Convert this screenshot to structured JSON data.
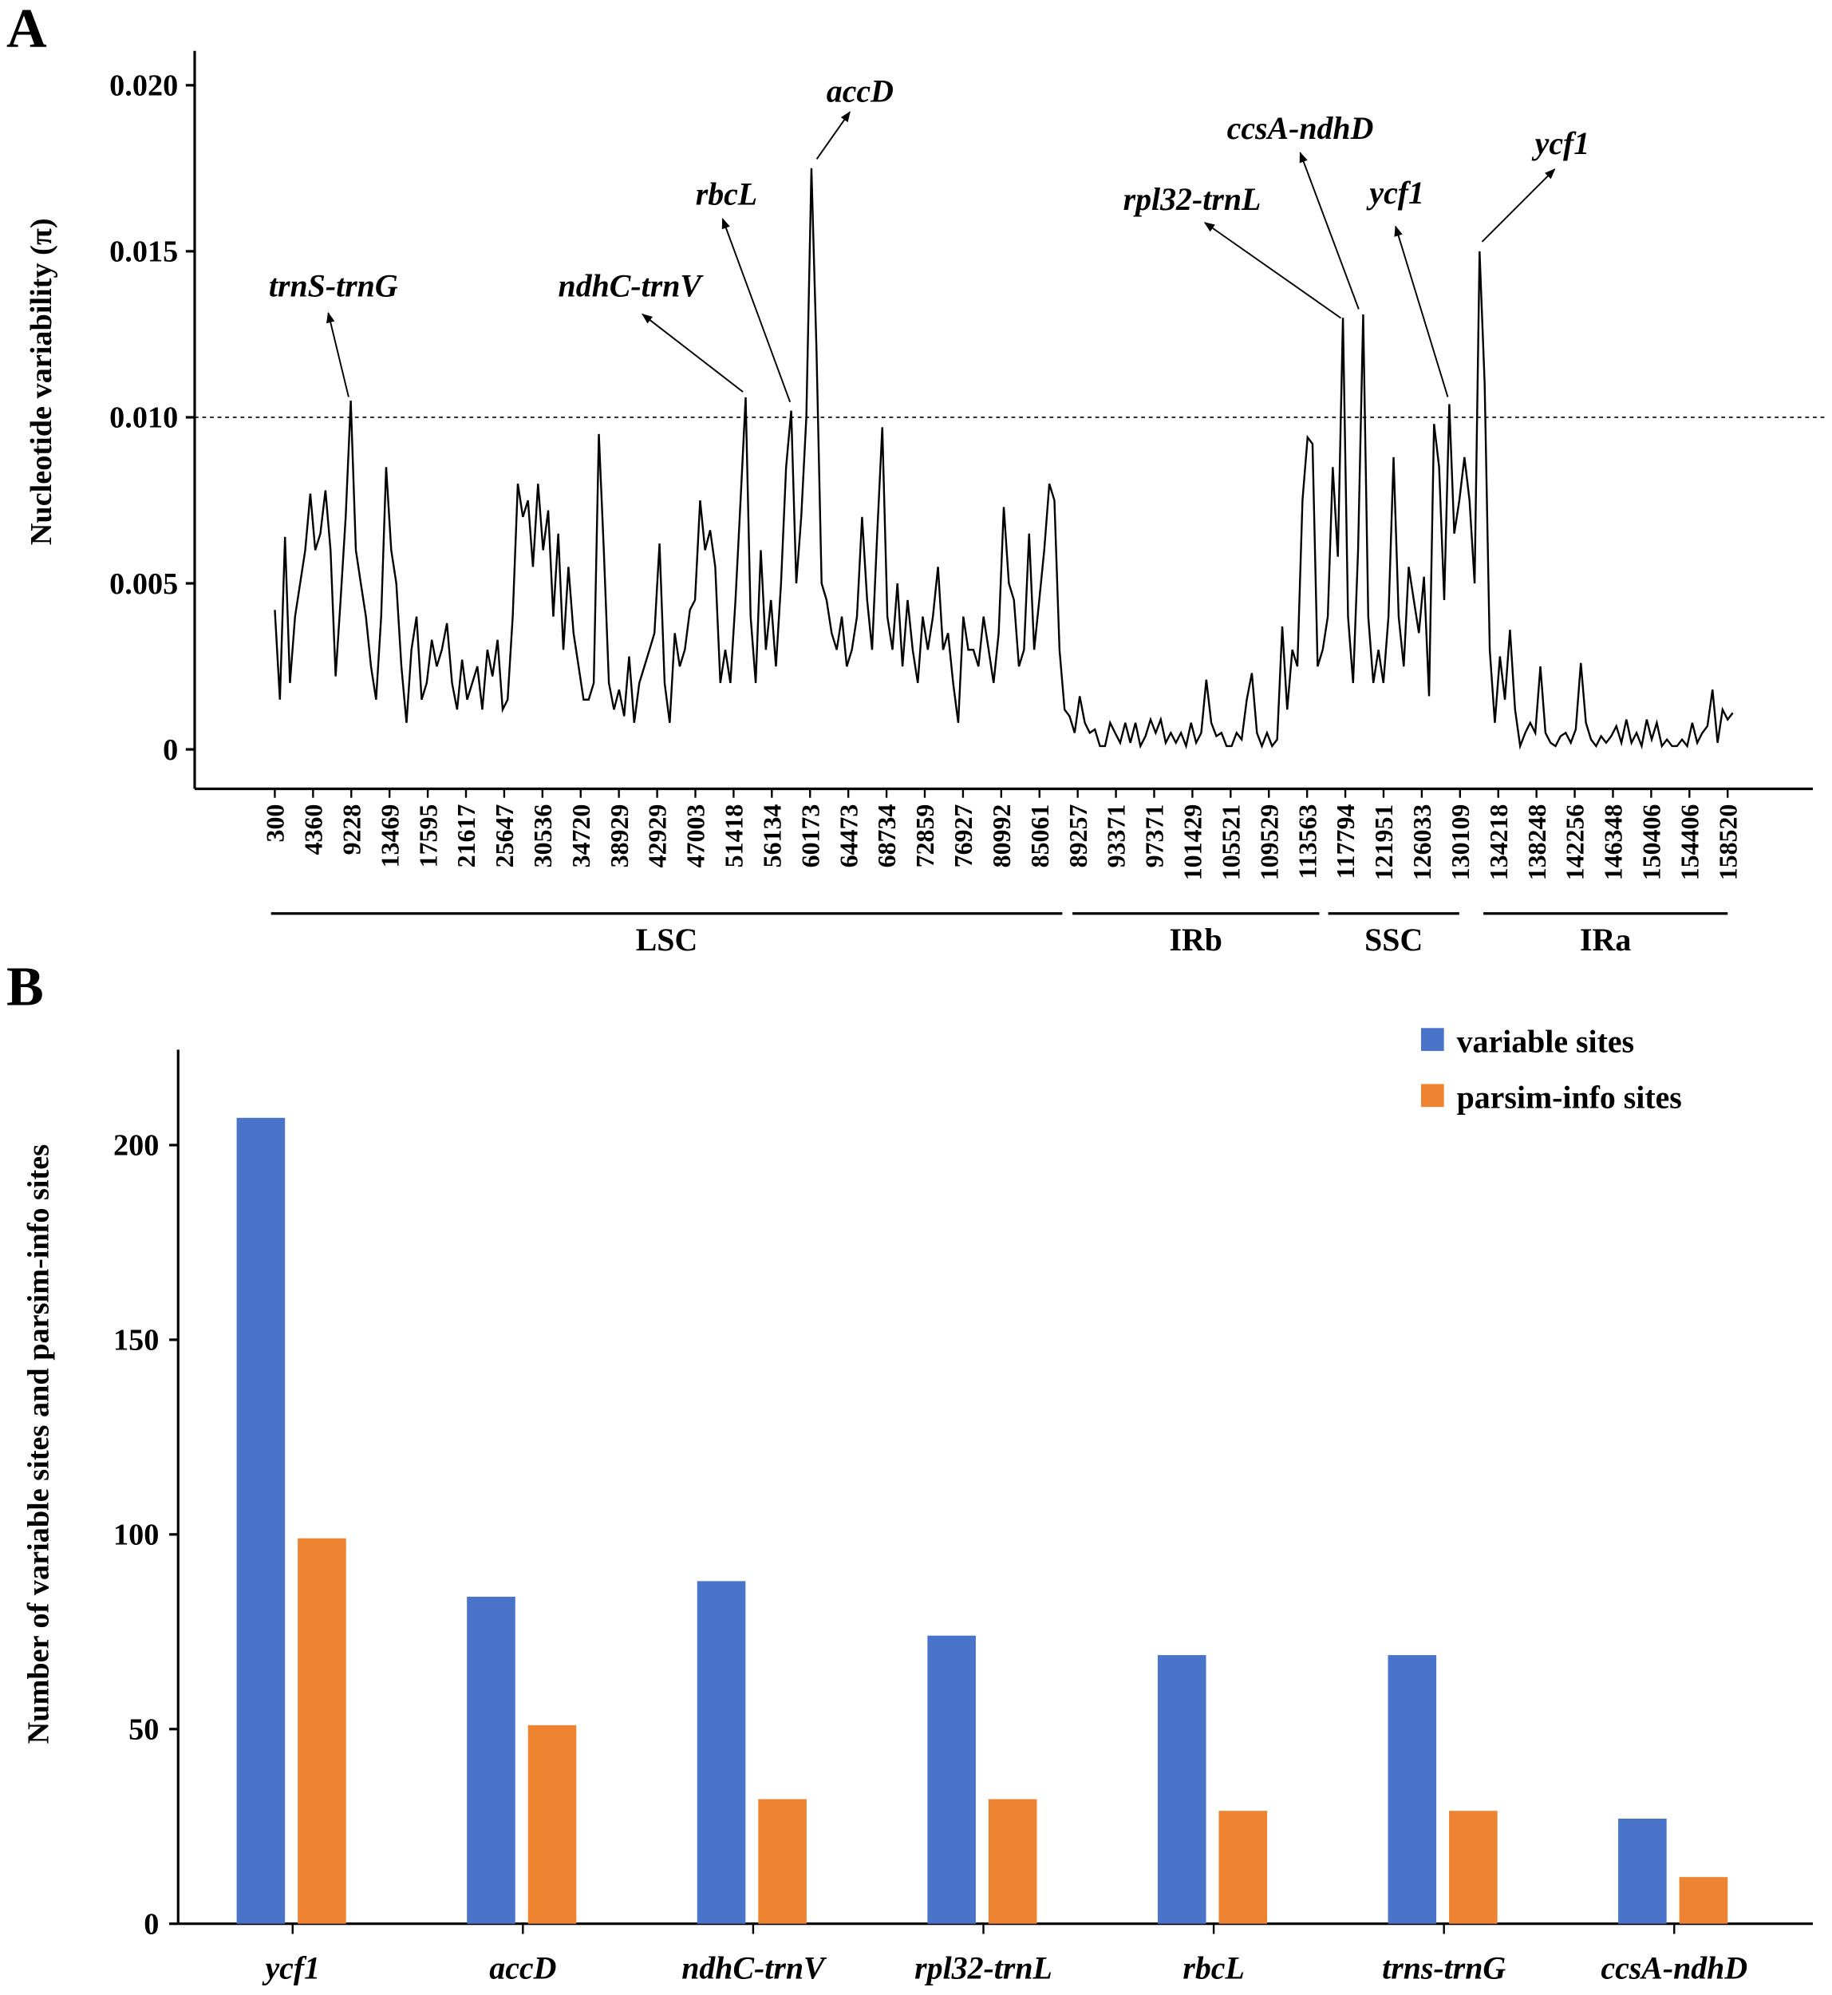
{
  "chart_data": [
    {
      "panel": "A",
      "type": "line",
      "title": "",
      "xlabel": "",
      "ylabel": "Nucleotide variability (π)",
      "ylim": [
        0,
        0.021
      ],
      "yticks": [
        "0",
        "0.005",
        "0.010",
        "0.015",
        "0.020"
      ],
      "ytick_values": [
        0,
        0.005,
        0.01,
        0.015,
        0.02
      ],
      "threshold": 0.01,
      "xticks": [
        "300",
        "4360",
        "9228",
        "13469",
        "17595",
        "21617",
        "25647",
        "30536",
        "34720",
        "38929",
        "42929",
        "47003",
        "51418",
        "56134",
        "60173",
        "64473",
        "68734",
        "72859",
        "76927",
        "80992",
        "85061",
        "89257",
        "93371",
        "97371",
        "101429",
        "105521",
        "109529",
        "113563",
        "117794",
        "121951",
        "126033",
        "130109",
        "134218",
        "138248",
        "142256",
        "146348",
        "150406",
        "154406",
        "158520"
      ],
      "x_range": [
        300,
        159400
      ],
      "regions": [
        {
          "label": "LSC",
          "start": 300,
          "end": 86000
        },
        {
          "label": "IRb",
          "start": 87000,
          "end": 114000
        },
        {
          "label": "SSC",
          "start": 115000,
          "end": 129000
        },
        {
          "label": "IRa",
          "start": 131500,
          "end": 158520
        }
      ],
      "annotations": [
        {
          "label": "trnS-trnG",
          "x": 8600,
          "y": 0.0105
        },
        {
          "label": "ndhC-trnV",
          "x": 51100,
          "y": 0.0106
        },
        {
          "label": "rbcL",
          "x": 56000,
          "y": 0.0102
        },
        {
          "label": "accD",
          "x": 58400,
          "y": 0.0175
        },
        {
          "label": "rpl32-trnL",
          "x": 116300,
          "y": 0.013
        },
        {
          "label": "ccsA-ndhD",
          "x": 118300,
          "y": 0.0131
        },
        {
          "label": "ycf1",
          "x": 127900,
          "y": 0.0104
        },
        {
          "label": "ycf1",
          "x": 131500,
          "y": 0.015
        }
      ],
      "values": [
        0.0042,
        0.0015,
        0.0064,
        0.002,
        0.004,
        0.005,
        0.006,
        0.0077,
        0.006,
        0.0065,
        0.0078,
        0.006,
        0.0022,
        0.0045,
        0.007,
        0.0105,
        0.006,
        0.005,
        0.004,
        0.0025,
        0.0015,
        0.004,
        0.0085,
        0.006,
        0.005,
        0.0025,
        0.0008,
        0.003,
        0.004,
        0.0015,
        0.002,
        0.0033,
        0.0025,
        0.003,
        0.0038,
        0.002,
        0.0012,
        0.0027,
        0.0015,
        0.002,
        0.0025,
        0.0012,
        0.003,
        0.0022,
        0.0033,
        0.0012,
        0.0015,
        0.004,
        0.008,
        0.007,
        0.0075,
        0.0055,
        0.008,
        0.006,
        0.0072,
        0.004,
        0.0065,
        0.003,
        0.0055,
        0.0035,
        0.0025,
        0.0015,
        0.0015,
        0.002,
        0.0095,
        0.006,
        0.002,
        0.0012,
        0.0018,
        0.001,
        0.0028,
        0.0008,
        0.002,
        0.0025,
        0.003,
        0.0035,
        0.0062,
        0.002,
        0.0008,
        0.0035,
        0.0025,
        0.003,
        0.0042,
        0.0045,
        0.0075,
        0.006,
        0.0066,
        0.0055,
        0.002,
        0.003,
        0.002,
        0.0045,
        0.0075,
        0.0106,
        0.004,
        0.002,
        0.006,
        0.003,
        0.0045,
        0.0025,
        0.005,
        0.0085,
        0.0102,
        0.005,
        0.007,
        0.01,
        0.0175,
        0.012,
        0.005,
        0.0045,
        0.0035,
        0.003,
        0.004,
        0.0025,
        0.003,
        0.004,
        0.007,
        0.0045,
        0.003,
        0.0065,
        0.0097,
        0.004,
        0.003,
        0.005,
        0.0025,
        0.0045,
        0.003,
        0.002,
        0.004,
        0.003,
        0.004,
        0.0055,
        0.003,
        0.0035,
        0.002,
        0.0008,
        0.004,
        0.003,
        0.003,
        0.0025,
        0.004,
        0.003,
        0.002,
        0.0035,
        0.0073,
        0.005,
        0.0045,
        0.0025,
        0.003,
        0.0065,
        0.003,
        0.0045,
        0.006,
        0.008,
        0.0075,
        0.003,
        0.0012,
        0.001,
        0.0005,
        0.0016,
        0.0008,
        0.0005,
        0.0006,
        0.0001,
        0.0001,
        0.0008,
        0.0005,
        0.0002,
        0.0008,
        0.0002,
        0.0008,
        0.0001,
        0.0004,
        0.0009,
        0.0005,
        0.0009,
        0.0002,
        0.0005,
        0.0002,
        0.0005,
        0.0001,
        0.0008,
        0.0002,
        0.0005,
        0.0021,
        0.0008,
        0.0004,
        0.0005,
        0.0001,
        0.0001,
        0.0005,
        0.0003,
        0.0015,
        0.0023,
        0.0005,
        0.0001,
        0.0005,
        0.0001,
        0.0003,
        0.0037,
        0.0012,
        0.003,
        0.0025,
        0.0075,
        0.0094,
        0.0092,
        0.0025,
        0.003,
        0.004,
        0.0085,
        0.0058,
        0.013,
        0.004,
        0.002,
        0.006,
        0.0131,
        0.004,
        0.002,
        0.003,
        0.002,
        0.004,
        0.0088,
        0.004,
        0.0025,
        0.0055,
        0.0045,
        0.0035,
        0.0052,
        0.0016,
        0.0098,
        0.0085,
        0.0045,
        0.0104,
        0.0065,
        0.0075,
        0.0088,
        0.0075,
        0.005,
        0.015,
        0.011,
        0.003,
        0.0008,
        0.0028,
        0.0015,
        0.0036,
        0.0012,
        0.0001,
        0.0005,
        0.0008,
        0.0005,
        0.0025,
        0.0005,
        0.0002,
        0.0001,
        0.0004,
        0.0005,
        0.0002,
        0.0006,
        0.0026,
        0.0008,
        0.0003,
        0.0001,
        0.0004,
        0.0002,
        0.0004,
        0.0007,
        0.0002,
        0.0009,
        0.0002,
        0.0005,
        0.0001,
        0.0009,
        0.0003,
        0.0008,
        0.0001,
        0.0003,
        0.0001,
        0.0001,
        0.0003,
        0.0001,
        0.0008,
        0.0002,
        0.0005,
        0.0007,
        0.0018,
        0.0002,
        0.0012,
        0.0009,
        0.0011
      ]
    },
    {
      "panel": "B",
      "type": "bar",
      "title": "",
      "xlabel": "",
      "ylabel": "Number of variable sites and parsim-info sites",
      "ylim": [
        0,
        225
      ],
      "yticks": [
        "0",
        "50",
        "100",
        "150",
        "200"
      ],
      "ytick_values": [
        0,
        50,
        100,
        150,
        200
      ],
      "legend_position": "top-right",
      "categories": [
        "ycf1",
        "accD",
        "ndhC-trnV",
        "rpl32-trnL",
        "rbcL",
        "trns-trnG",
        "ccsA-ndhD"
      ],
      "series": [
        {
          "name": "variable sites",
          "color": "#4a74c9",
          "values": [
            207,
            84,
            88,
            74,
            69,
            69,
            27
          ]
        },
        {
          "name": "parsim-info sites",
          "color": "#ee8432",
          "values": [
            99,
            51,
            32,
            32,
            29,
            29,
            12
          ]
        }
      ]
    }
  ],
  "panel_labels": [
    "A",
    "B"
  ]
}
